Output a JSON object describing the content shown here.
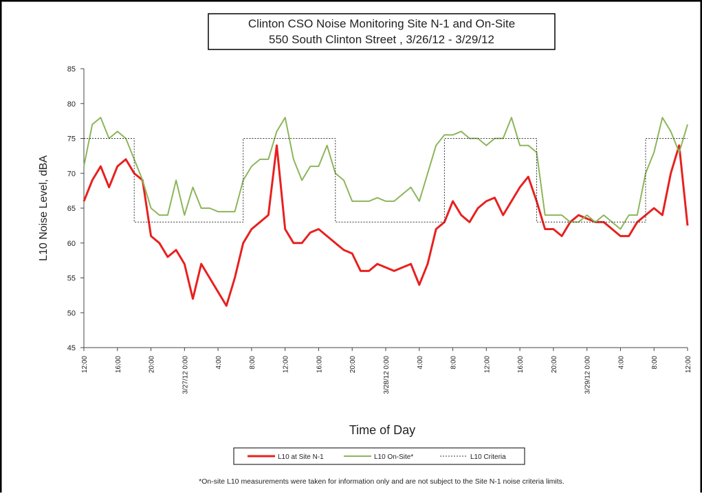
{
  "chart_data": {
    "type": "line",
    "title": "Clinton CSO Noise Monitoring Site N-1 and On-Site",
    "subtitle": "550 South Clinton Street , 3/26/12 - 3/29/12",
    "x_label": "Time of Day",
    "y_label": "L10 Noise Level, dBA",
    "footnote": "*On-site L10 measurements were taken for information only and are not subject to the Site N-1 noise criteria limits.",
    "xlim": [
      0,
      72
    ],
    "xticks": [
      {
        "value": 0,
        "label": "12:00"
      },
      {
        "value": 4,
        "label": "16:00"
      },
      {
        "value": 8,
        "label": "20:00"
      },
      {
        "value": 12,
        "label": "3/27/12 0:00"
      },
      {
        "value": 16,
        "label": "4:00"
      },
      {
        "value": 20,
        "label": "8:00"
      },
      {
        "value": 24,
        "label": "12:00"
      },
      {
        "value": 28,
        "label": "16:00"
      },
      {
        "value": 32,
        "label": "20:00"
      },
      {
        "value": 36,
        "label": "3/28/12 0:00"
      },
      {
        "value": 40,
        "label": "4:00"
      },
      {
        "value": 44,
        "label": "8:00"
      },
      {
        "value": 48,
        "label": "12:00"
      },
      {
        "value": 52,
        "label": "16:00"
      },
      {
        "value": 56,
        "label": "20:00"
      },
      {
        "value": 60,
        "label": "3/29/12 0:00"
      },
      {
        "value": 64,
        "label": "4:00"
      },
      {
        "value": 68,
        "label": "8:00"
      },
      {
        "value": 72,
        "label": "12:00"
      }
    ],
    "ylim": [
      45,
      85
    ],
    "yticks": [
      45,
      50,
      55,
      60,
      65,
      70,
      75,
      80,
      85
    ],
    "series": [
      {
        "name": "L10 at Site N-1",
        "color": "#e8201e",
        "x": [
          0,
          1,
          2,
          3,
          4,
          5,
          6,
          7,
          8,
          9,
          10,
          11,
          12,
          13,
          14,
          15,
          16,
          17,
          18,
          19,
          20,
          21,
          22,
          23,
          24,
          25,
          26,
          27,
          28,
          29,
          30,
          31,
          32,
          33,
          34,
          35,
          36,
          37,
          38,
          39,
          40,
          41,
          42,
          43,
          44,
          45,
          46,
          47,
          48,
          49,
          50,
          51,
          52,
          53,
          54,
          55,
          56,
          57,
          58,
          59,
          60,
          61,
          62,
          63,
          64,
          65,
          66,
          67,
          68,
          69,
          70,
          71,
          72
        ],
        "values": [
          66,
          69,
          71,
          68,
          71,
          72,
          70,
          69,
          61,
          60,
          58,
          59,
          57,
          52,
          57,
          55,
          53,
          51,
          55,
          60,
          62,
          63,
          64,
          74,
          62,
          60,
          60,
          61.5,
          62,
          61,
          60,
          59,
          58.5,
          56,
          56,
          57,
          56.5,
          56,
          56.5,
          57,
          54,
          57,
          62,
          63,
          66,
          64,
          63,
          65,
          66,
          66.5,
          64,
          66,
          68,
          69.5,
          66,
          62,
          62,
          61,
          63,
          64,
          63.5,
          63,
          63,
          62,
          61,
          61,
          63,
          64,
          65,
          64,
          70,
          74,
          62.5
        ]
      },
      {
        "name": "L10 On-Site*",
        "color": "#8db55a",
        "x": [
          0,
          1,
          2,
          3,
          4,
          5,
          6,
          7,
          8,
          9,
          10,
          11,
          12,
          13,
          14,
          15,
          16,
          17,
          18,
          19,
          20,
          21,
          22,
          23,
          24,
          25,
          26,
          27,
          28,
          29,
          30,
          31,
          32,
          33,
          34,
          35,
          36,
          37,
          38,
          39,
          40,
          41,
          42,
          43,
          44,
          45,
          46,
          47,
          48,
          49,
          50,
          51,
          52,
          53,
          54,
          55,
          56,
          57,
          58,
          59,
          60,
          61,
          62,
          63,
          64,
          65,
          66,
          67,
          68,
          69,
          70,
          71,
          72
        ],
        "values": [
          71,
          77,
          78,
          75,
          76,
          75,
          72,
          69,
          65,
          64,
          64,
          69,
          64,
          68,
          65,
          65,
          64.5,
          64.5,
          64.5,
          69,
          71,
          72,
          72,
          76,
          78,
          72,
          69,
          71,
          71,
          74,
          70,
          69,
          66,
          66,
          66,
          66.5,
          66,
          66,
          67,
          68,
          66,
          70,
          74,
          75.5,
          75.5,
          76,
          75,
          75,
          74,
          75,
          75,
          78,
          74,
          74,
          73,
          64,
          64,
          64,
          63,
          63,
          64,
          63,
          64,
          63,
          62,
          64,
          64,
          70,
          73,
          78,
          76,
          73,
          77
        ]
      },
      {
        "name": "L10 Criteria",
        "color": "#333333",
        "dashed": true,
        "x": [
          0,
          6,
          6,
          19,
          19,
          30,
          30,
          43,
          43,
          54,
          54,
          67,
          67,
          72
        ],
        "values": [
          75,
          75,
          63,
          63,
          75,
          75,
          63,
          63,
          75,
          75,
          63,
          63,
          75,
          75
        ]
      }
    ]
  }
}
